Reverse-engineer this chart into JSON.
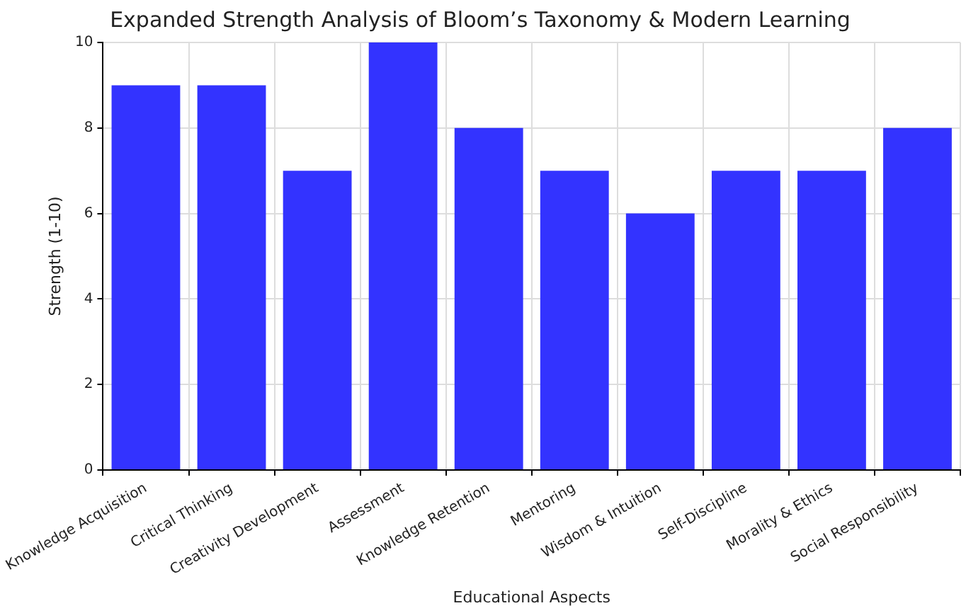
{
  "chart_data": {
    "type": "bar",
    "title": "Expanded Strength Analysis of Bloom’s Taxonomy & Modern Learning",
    "xlabel": "Educational Aspects",
    "ylabel": "Strength (1-10)",
    "categories": [
      "Knowledge Acquisition",
      "Critical Thinking",
      "Creativity Development",
      "Assessment",
      "Knowledge Retention",
      "Mentoring",
      "Wisdom & Intuition",
      "Self-Discipline",
      "Morality & Ethics",
      "Social Responsibility"
    ],
    "values": [
      9,
      9,
      7,
      10,
      8,
      7,
      6,
      7,
      7,
      8
    ],
    "color": "#3333ff",
    "ylim": [
      0,
      10
    ],
    "yticks": [
      0,
      2,
      4,
      6,
      8,
      10
    ],
    "grid": true
  }
}
